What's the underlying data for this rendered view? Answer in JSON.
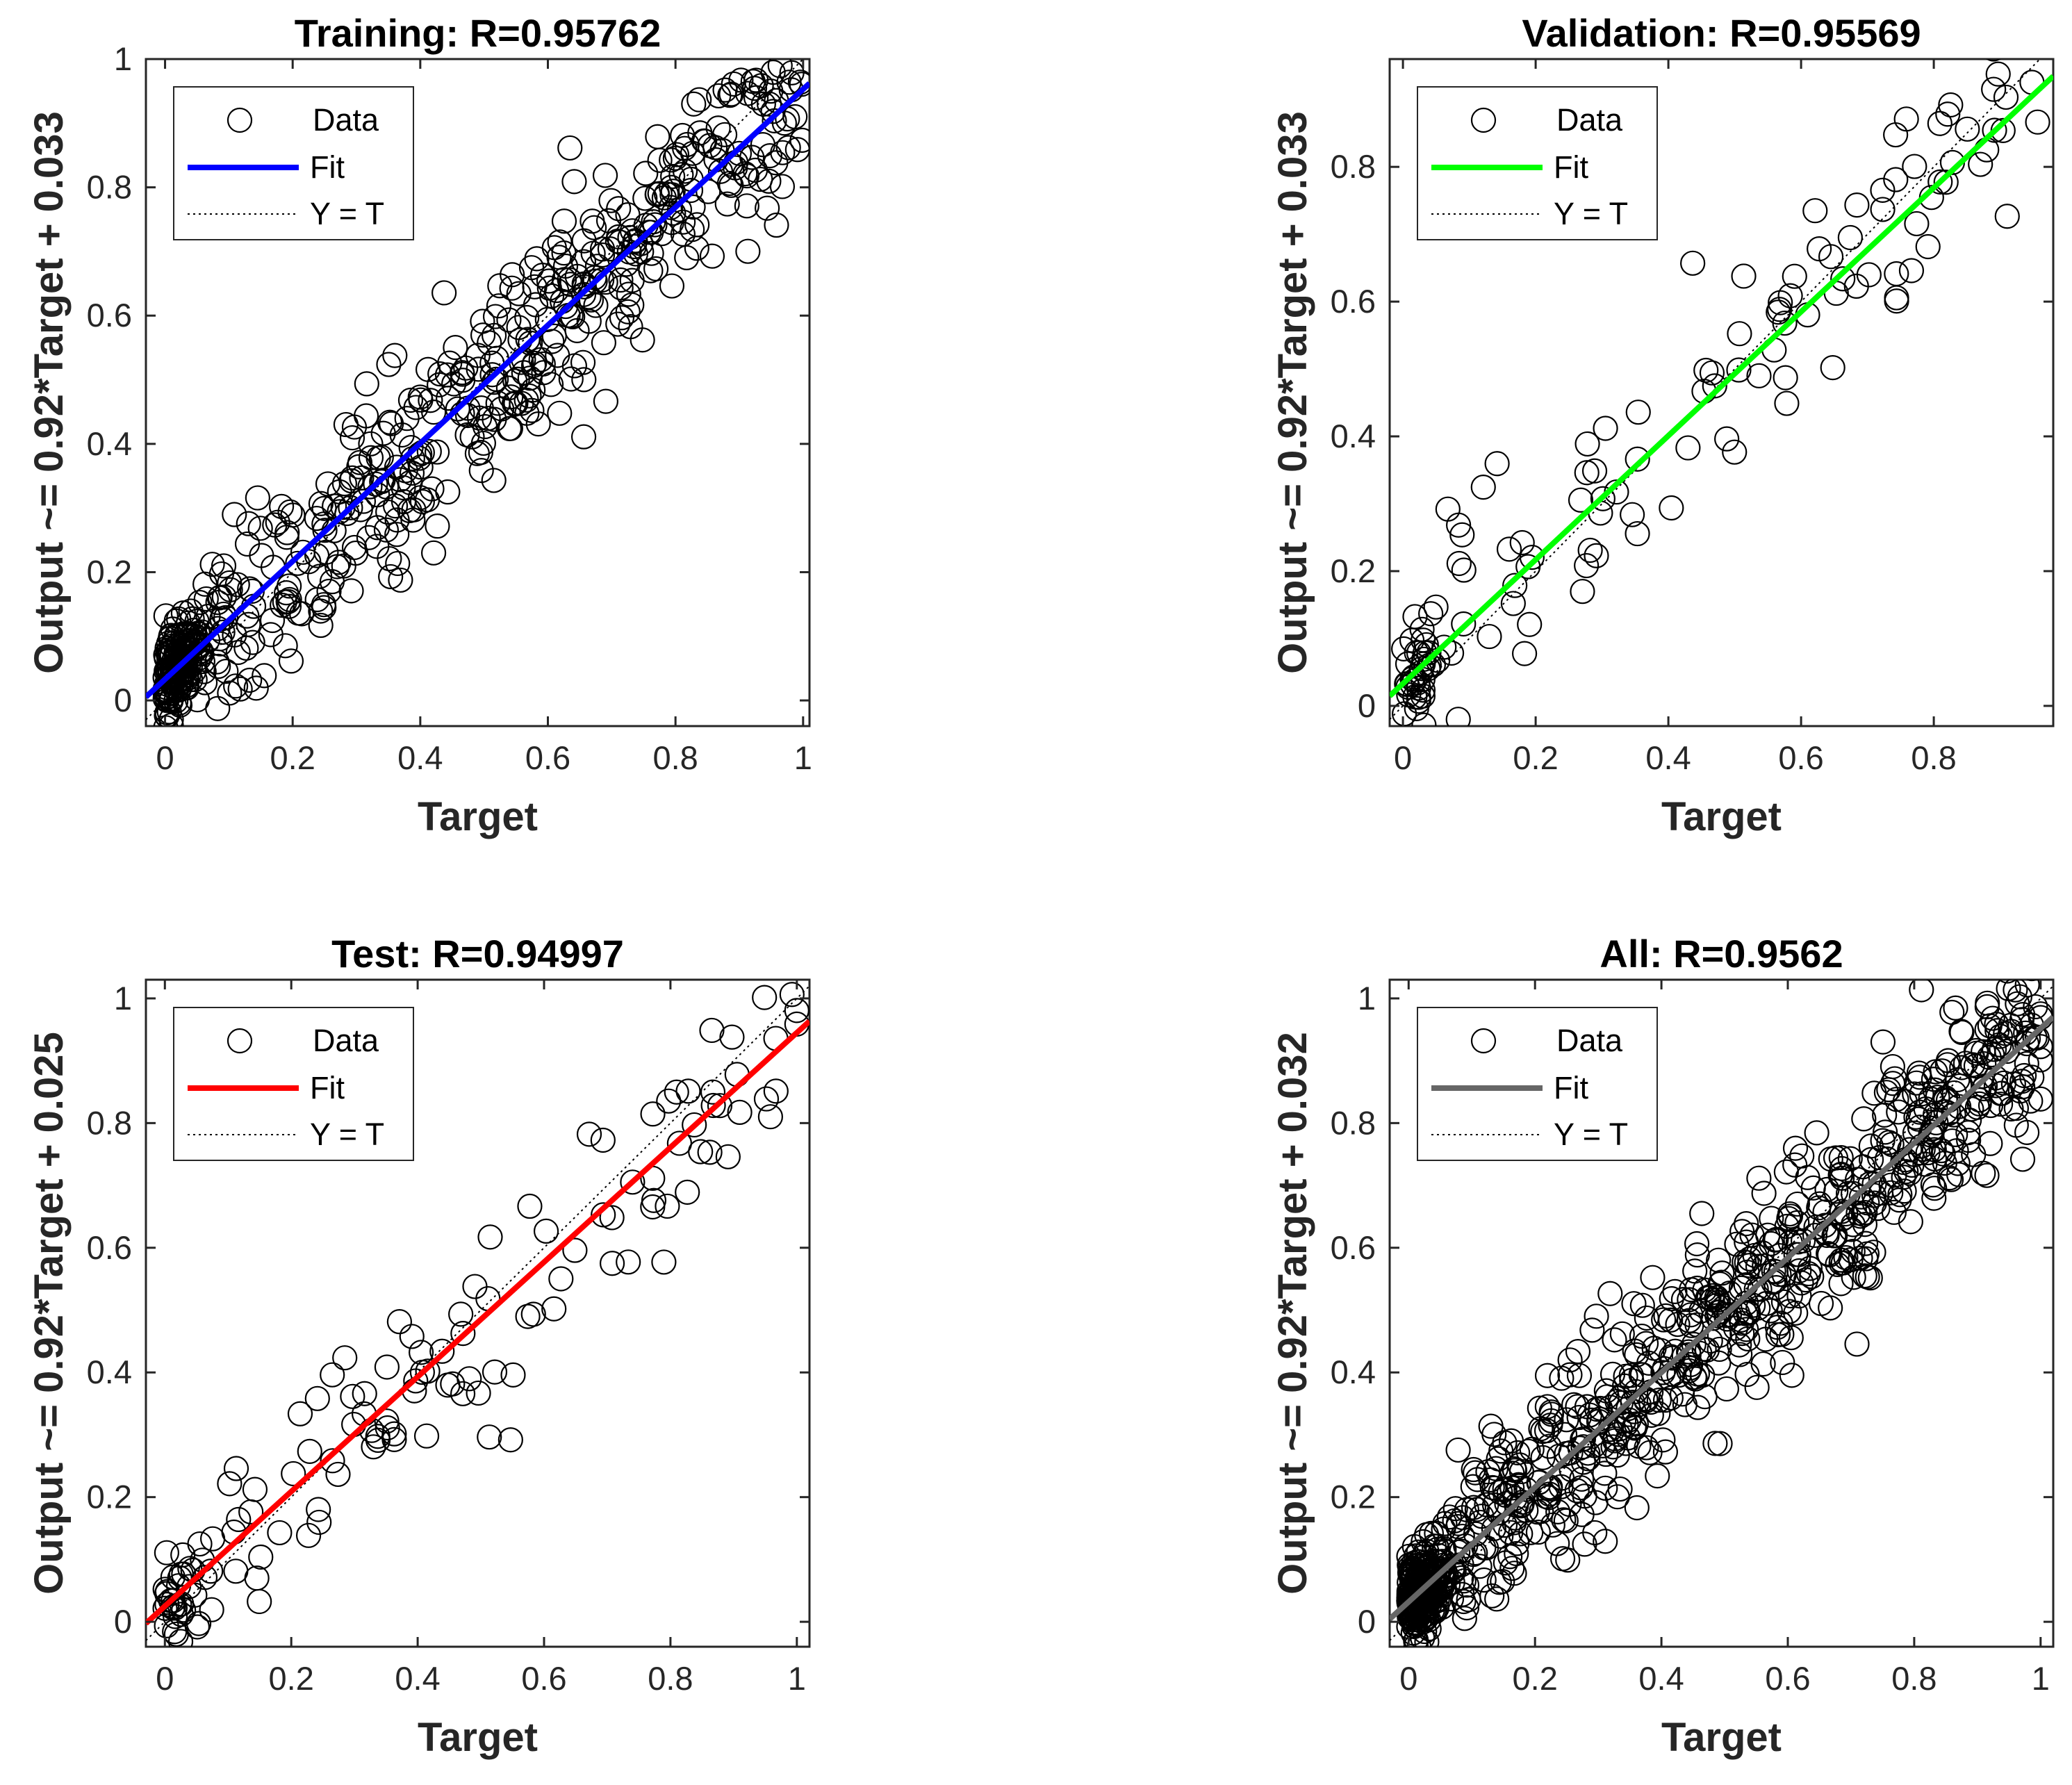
{
  "chart_data": [
    {
      "type": "scatter",
      "panel": "training",
      "title": "Training: R=0.95762",
      "xlabel": "Target",
      "ylabel": "Output ~= 0.92*Target + 0.033",
      "xlim": [
        -0.03,
        1.01
      ],
      "ylim": [
        -0.04,
        1.0
      ],
      "xticks": [
        "0",
        "0.2",
        "0.4",
        "0.6",
        "0.8",
        "1"
      ],
      "yticks": [
        "0",
        "0.2",
        "0.4",
        "0.6",
        "0.8",
        "1"
      ],
      "fit": {
        "slope": 0.92,
        "intercept": 0.033,
        "color": "#0000ff"
      },
      "legend": [
        "Data",
        "Fit",
        "Y = T"
      ],
      "legend_position": "top-left",
      "n_points": 620,
      "seed": 11
    },
    {
      "type": "scatter",
      "panel": "validation",
      "title": "Validation: R=0.95569",
      "xlabel": "Target",
      "ylabel": "Output ~= 0.92*Target + 0.033",
      "xlim": [
        -0.02,
        0.98
      ],
      "ylim": [
        -0.03,
        0.96
      ],
      "xticks": [
        "0",
        "0.2",
        "0.4",
        "0.6",
        "0.8"
      ],
      "yticks": [
        "0",
        "0.2",
        "0.4",
        "0.6",
        "0.8"
      ],
      "fit": {
        "slope": 0.92,
        "intercept": 0.033,
        "color": "#00ff00"
      },
      "legend": [
        "Data",
        "Fit",
        "Y = T"
      ],
      "legend_position": "top-left",
      "n_points": 140,
      "seed": 29
    },
    {
      "type": "scatter",
      "panel": "test",
      "title": "Test: R=0.94997",
      "xlabel": "Target",
      "ylabel": "Output ~= 0.92*Target + 0.025",
      "xlim": [
        -0.03,
        1.02
      ],
      "ylim": [
        -0.04,
        1.03
      ],
      "xticks": [
        "0",
        "0.2",
        "0.4",
        "0.6",
        "0.8",
        "1"
      ],
      "yticks": [
        "0",
        "0.2",
        "0.4",
        "0.6",
        "0.8",
        "1"
      ],
      "fit": {
        "slope": 0.92,
        "intercept": 0.025,
        "color": "#ff0000"
      },
      "legend": [
        "Data",
        "Fit",
        "Y = T"
      ],
      "legend_position": "top-left",
      "n_points": 140,
      "seed": 47
    },
    {
      "type": "scatter",
      "panel": "all",
      "title": "All: R=0.9562",
      "xlabel": "Target",
      "ylabel": "Output ~= 0.92*Target + 0.032",
      "xlim": [
        -0.03,
        1.02
      ],
      "ylim": [
        -0.04,
        1.03
      ],
      "xticks": [
        "0",
        "0.2",
        "0.4",
        "0.6",
        "0.8",
        "1"
      ],
      "yticks": [
        "0",
        "0.2",
        "0.4",
        "0.6",
        "0.8",
        "1"
      ],
      "fit": {
        "slope": 0.92,
        "intercept": 0.032,
        "color": "#666666"
      },
      "legend": [
        "Data",
        "Fit",
        "Y = T"
      ],
      "legend_position": "top-left",
      "n_points": 900,
      "seed": 71
    }
  ]
}
